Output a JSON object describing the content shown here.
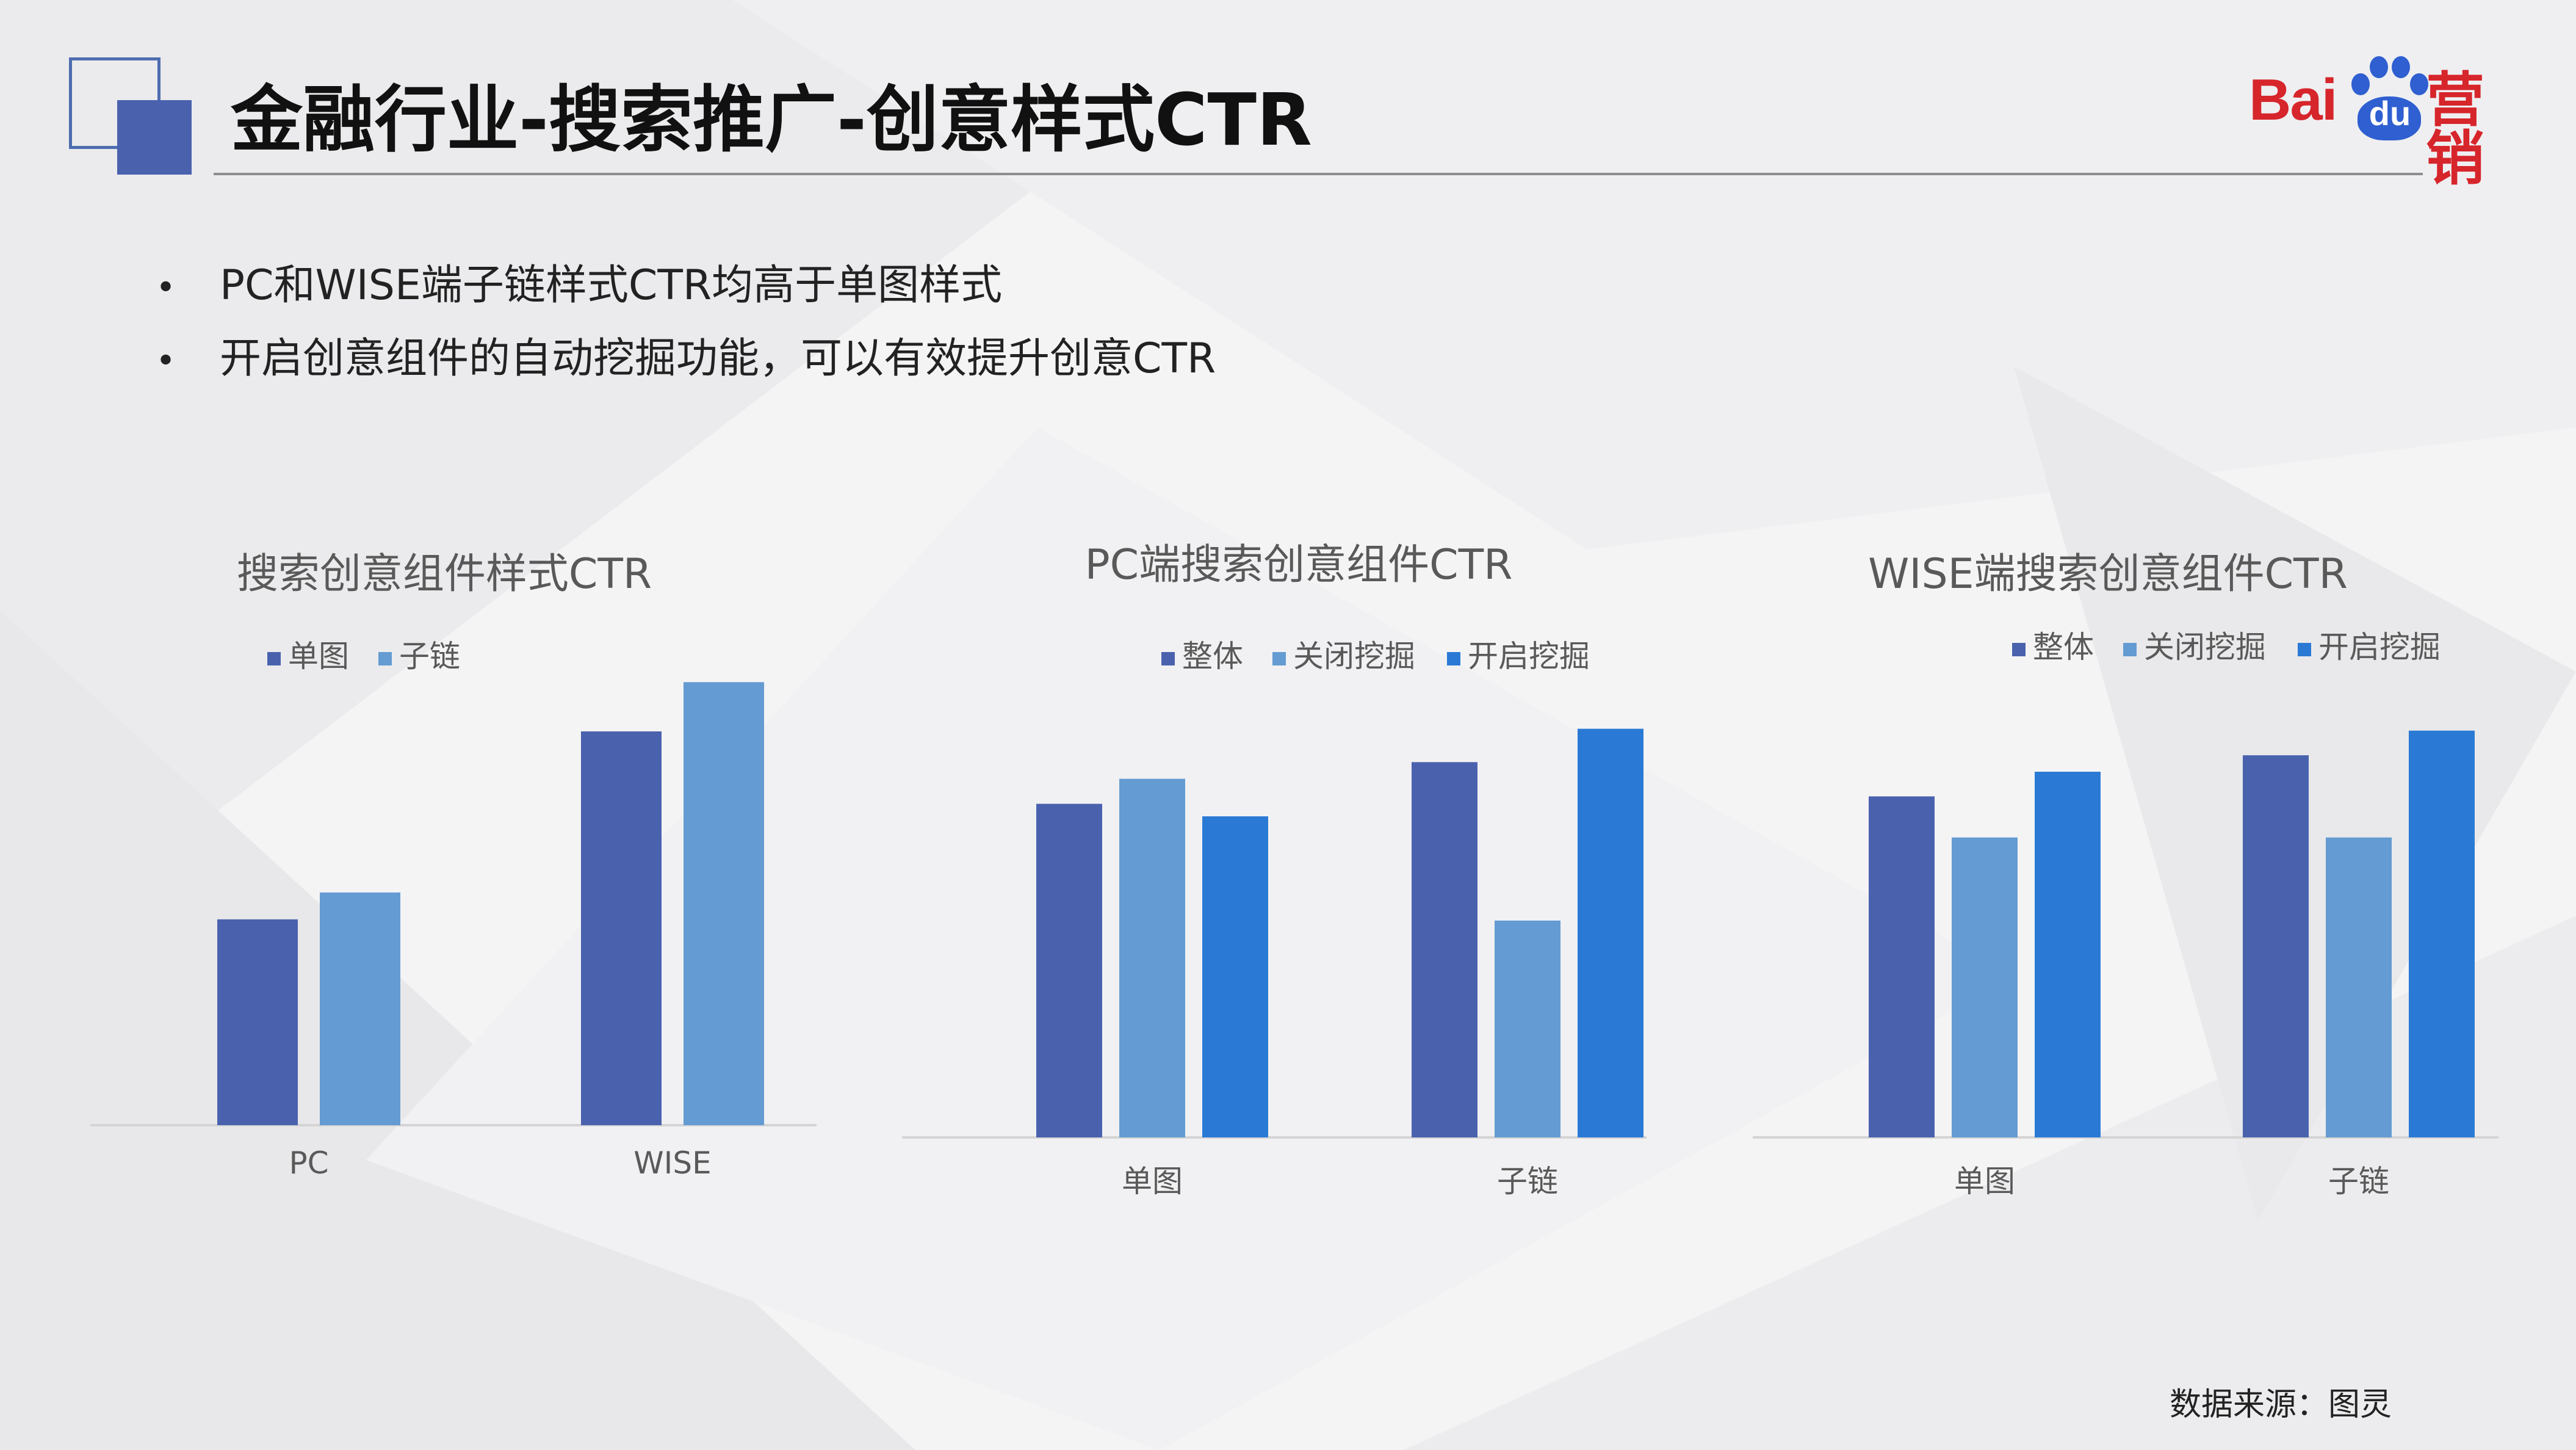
{
  "title": "金融行业-搜索推广-创意样式CTR",
  "logo": {
    "brand_text": "Bai",
    "du_text": "du",
    "suffix_text": "营销",
    "brand_color": "#d6252b",
    "paw_color": "#2f5fd0"
  },
  "bullets": [
    {
      "marker": "•",
      "text": "PC和WISE端子链样式CTR均高于单图样式"
    },
    {
      "marker": "•",
      "text": "开启创意组件的自动挖掘功能，可以有效提升创意CTR"
    }
  ],
  "colors": {
    "series_dark": "#4a62ae",
    "series_light": "#649bd2",
    "series_bright": "#2a7ad5",
    "axis": "#d4d4d4",
    "title_text": "#595959"
  },
  "chart_data": [
    {
      "type": "bar",
      "title": "搜索创意组件样式CTR",
      "categories": [
        "PC",
        "WISE"
      ],
      "series": [
        {
          "name": "单图",
          "color": "#4a62ae",
          "values": [
            46,
            88
          ]
        },
        {
          "name": "子链",
          "color": "#649bd2",
          "values": [
            52,
            99
          ]
        }
      ],
      "ylim": [
        0,
        100
      ],
      "legend": "top",
      "grid": false
    },
    {
      "type": "bar",
      "title": "PC端搜索创意组件CTR",
      "categories": [
        "单图",
        "子链"
      ],
      "series": [
        {
          "name": "整体",
          "color": "#4a62ae",
          "values": [
            80,
            90
          ]
        },
        {
          "name": "关闭挖掘",
          "color": "#649bd2",
          "values": [
            86,
            52
          ]
        },
        {
          "name": "开启挖掘",
          "color": "#2a7ad5",
          "values": [
            77,
            98
          ]
        }
      ],
      "ylim": [
        0,
        100
      ],
      "legend": "top",
      "grid": false
    },
    {
      "type": "bar",
      "title": "WISE端搜索创意组件CTR",
      "categories": [
        "单图",
        "子链"
      ],
      "series": [
        {
          "name": "整体",
          "color": "#4a62ae",
          "values": [
            83,
            93
          ]
        },
        {
          "name": "关闭挖掘",
          "color": "#649bd2",
          "values": [
            73,
            73
          ]
        },
        {
          "name": "开启挖掘",
          "color": "#2a7ad5",
          "values": [
            89,
            99
          ]
        }
      ],
      "ylim": [
        0,
        100
      ],
      "legend": "top",
      "grid": false
    }
  ],
  "source": "数据来源：图灵"
}
